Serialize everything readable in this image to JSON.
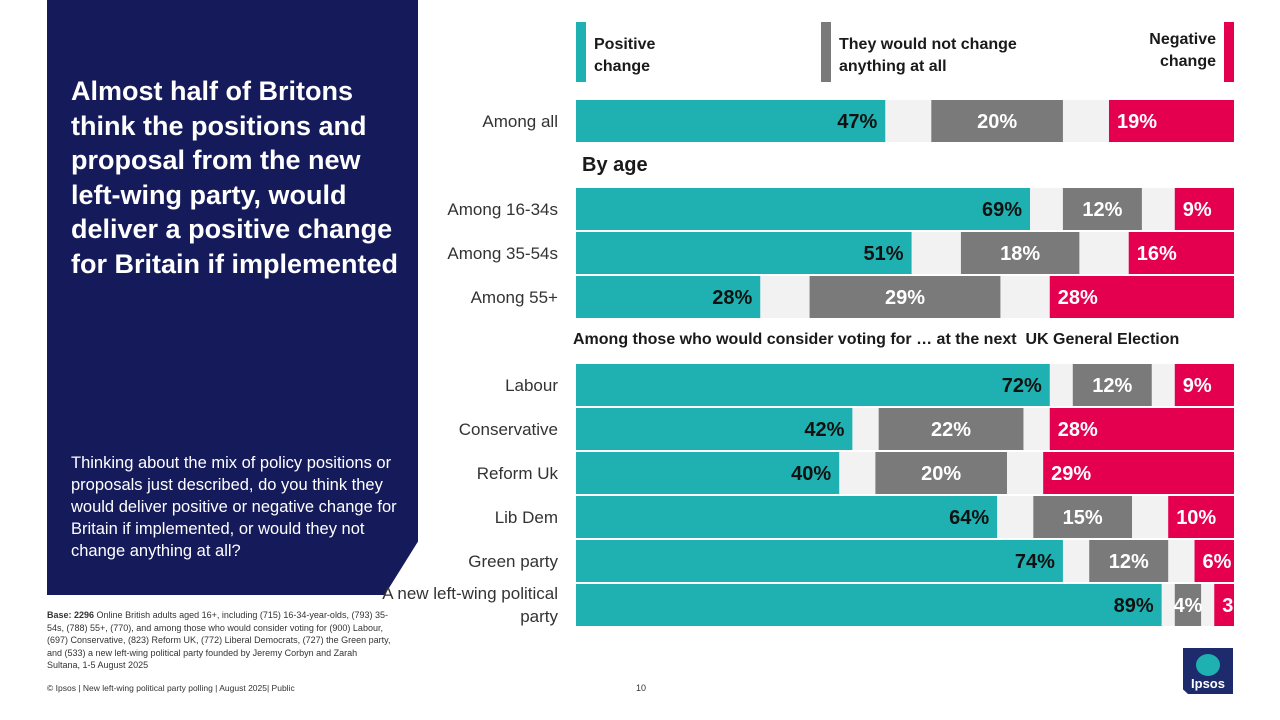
{
  "headline": "Almost half of Britons think the positions and proposal from the new left-wing party, would deliver a positive change for Britain if implemented",
  "question": "Thinking about the mix of policy positions or proposals just described, do you think they would deliver positive or negative change for Britain if implemented, or would they not change anything at all?",
  "base_bold": "Base: 2296",
  "base_text": " Online British adults aged 16+, including (715) 16-34-year-olds, (793) 35-54s, (788) 55+, (770), and among those who would consider voting for (900) Labour, (697) Conservative, (823) Reform UK, (772) Liberal Democrats, (727) the Green party, and (533) a new left-wing political party founded by Jeremy Corbyn and Zarah Sultana, 1-5 August 2025",
  "footer": "© Ipsos | New left-wing political party polling | August 2025| Public",
  "page_number": "10",
  "logo_text": "Ipsos",
  "sections": {
    "by_age": "By age",
    "by_vote": "Among those who would consider voting for … at the next  UK General Election"
  },
  "colors": {
    "positive": "#1fb1b1",
    "neutral": "#7a7a7a",
    "negative": "#e4004f",
    "gap": "#f2f2f2",
    "panel": "#141a5a"
  },
  "chart_data": {
    "type": "bar",
    "orientation": "horizontal",
    "layout": "diverging-stacked",
    "series": [
      {
        "name": "Positive change",
        "key": "positive"
      },
      {
        "name": "They would not change anything at all",
        "key": "neutral"
      },
      {
        "name": "Negative change",
        "key": "negative"
      }
    ],
    "legend": {
      "positive": "Positive change",
      "neutral": "They would not change anything at all",
      "negative": "Negative change"
    },
    "rows": [
      {
        "label": "Among all",
        "positive": 47,
        "neutral": 20,
        "negative": 19
      },
      {
        "label": "Among 16-34s",
        "positive": 69,
        "neutral": 12,
        "negative": 9
      },
      {
        "label": "Among 35-54s",
        "positive": 51,
        "neutral": 18,
        "negative": 16
      },
      {
        "label": "Among 55+",
        "positive": 28,
        "neutral": 29,
        "negative": 28
      },
      {
        "label": "Labour",
        "positive": 72,
        "neutral": 12,
        "negative": 9
      },
      {
        "label": "Conservative",
        "positive": 42,
        "neutral": 22,
        "negative": 28
      },
      {
        "label": "Reform Uk",
        "positive": 40,
        "neutral": 20,
        "negative": 29
      },
      {
        "label": "Lib Dem",
        "positive": 64,
        "neutral": 15,
        "negative": 10
      },
      {
        "label": "Green party",
        "positive": 74,
        "neutral": 12,
        "negative": 6
      },
      {
        "label": "A new left-wing political party",
        "positive": 89,
        "neutral": 4,
        "negative": 3
      }
    ]
  }
}
